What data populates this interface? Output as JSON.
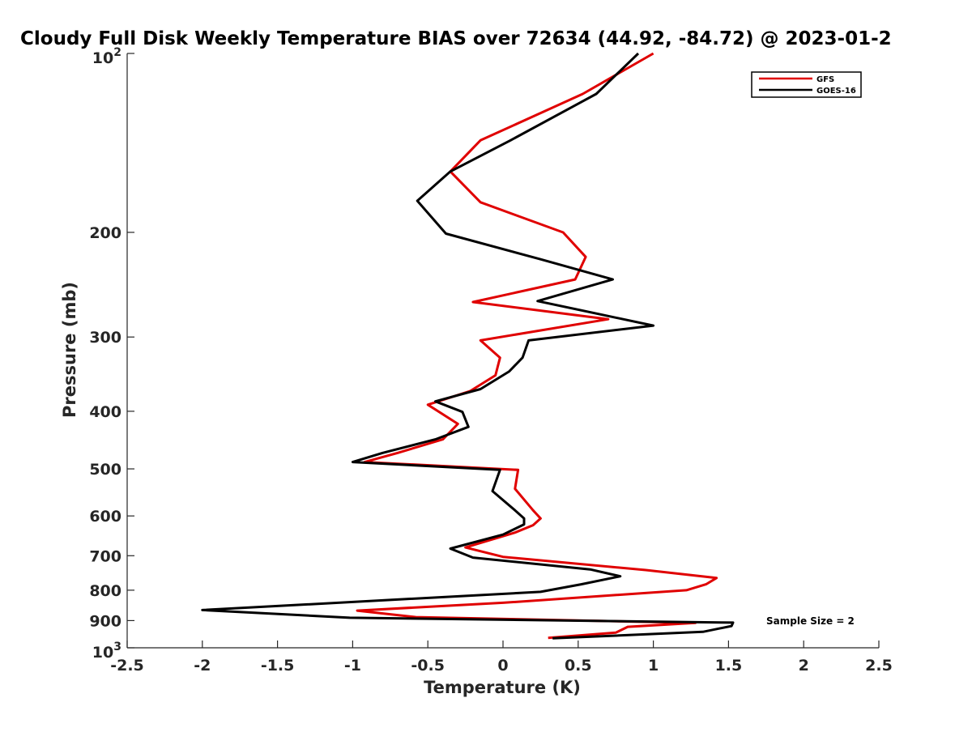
{
  "chart_data": {
    "type": "line",
    "title": "Cloudy Full Disk Weekly Temperature BIAS over 72634 (44.92, -84.72) @ 2023-01-2",
    "xlabel": "Temperature (K)",
    "ylabel": "Pressure (mb)",
    "xlim": [
      -2.5,
      2.5
    ],
    "ylim": [
      100,
      1000
    ],
    "y_scale": "log",
    "y_reversed": true,
    "grid": false,
    "legend_position": "top-right",
    "x_ticks": [
      "-2.5",
      "-2",
      "-1.5",
      "-1",
      "-0.5",
      "0",
      "0.5",
      "1",
      "1.5",
      "2",
      "2.5"
    ],
    "x_tick_values": [
      -2.5,
      -2,
      -1.5,
      -1,
      -0.5,
      0,
      0.5,
      1,
      1.5,
      2,
      2.5
    ],
    "y_ticks": [
      {
        "value": 100,
        "base": "10",
        "exp": "2"
      },
      {
        "value": 200,
        "label": "200"
      },
      {
        "value": 300,
        "label": "300"
      },
      {
        "value": 400,
        "label": "400"
      },
      {
        "value": 500,
        "label": "500"
      },
      {
        "value": 600,
        "label": "600"
      },
      {
        "value": 700,
        "label": "700"
      },
      {
        "value": 800,
        "label": "800"
      },
      {
        "value": 900,
        "label": "900"
      },
      {
        "value": 1000,
        "base": "10",
        "exp": "3"
      }
    ],
    "annotation": "Sample Size = 2",
    "series": [
      {
        "name": "GFS",
        "color": "#e00000",
        "points": [
          {
            "x": 1.0,
            "p": 100
          },
          {
            "x": 0.53,
            "p": 117
          },
          {
            "x": -0.15,
            "p": 140
          },
          {
            "x": -0.35,
            "p": 158
          },
          {
            "x": -0.15,
            "p": 178
          },
          {
            "x": 0.4,
            "p": 200
          },
          {
            "x": 0.55,
            "p": 220
          },
          {
            "x": 0.48,
            "p": 240
          },
          {
            "x": -0.2,
            "p": 262
          },
          {
            "x": 0.7,
            "p": 280
          },
          {
            "x": -0.15,
            "p": 304
          },
          {
            "x": -0.02,
            "p": 325
          },
          {
            "x": -0.05,
            "p": 348
          },
          {
            "x": -0.22,
            "p": 370
          },
          {
            "x": -0.5,
            "p": 390
          },
          {
            "x": -0.3,
            "p": 420
          },
          {
            "x": -0.4,
            "p": 446
          },
          {
            "x": -0.7,
            "p": 470
          },
          {
            "x": -0.92,
            "p": 487
          },
          {
            "x": 0.1,
            "p": 502
          },
          {
            "x": 0.08,
            "p": 540
          },
          {
            "x": 0.2,
            "p": 587
          },
          {
            "x": 0.25,
            "p": 606
          },
          {
            "x": 0.2,
            "p": 622
          },
          {
            "x": 0.08,
            "p": 640
          },
          {
            "x": -0.25,
            "p": 678
          },
          {
            "x": 0.0,
            "p": 703
          },
          {
            "x": 0.95,
            "p": 740
          },
          {
            "x": 1.42,
            "p": 763
          },
          {
            "x": 1.35,
            "p": 782
          },
          {
            "x": 1.22,
            "p": 800
          },
          {
            "x": 0.0,
            "p": 840
          },
          {
            "x": -0.97,
            "p": 866
          },
          {
            "x": -0.58,
            "p": 888
          },
          {
            "x": 1.28,
            "p": 908
          },
          {
            "x": 0.83,
            "p": 922
          },
          {
            "x": 0.75,
            "p": 943
          },
          {
            "x": 0.3,
            "p": 962
          }
        ]
      },
      {
        "name": "GOES-16",
        "color": "#000000",
        "points": [
          {
            "x": 0.9,
            "p": 100
          },
          {
            "x": 0.62,
            "p": 117
          },
          {
            "x": 0.05,
            "p": 140
          },
          {
            "x": -0.35,
            "p": 158
          },
          {
            "x": -0.57,
            "p": 177
          },
          {
            "x": -0.38,
            "p": 201
          },
          {
            "x": 0.25,
            "p": 222
          },
          {
            "x": 0.73,
            "p": 240
          },
          {
            "x": 0.23,
            "p": 261
          },
          {
            "x": 1.0,
            "p": 287
          },
          {
            "x": 0.17,
            "p": 304
          },
          {
            "x": 0.13,
            "p": 325
          },
          {
            "x": 0.04,
            "p": 343
          },
          {
            "x": -0.15,
            "p": 367
          },
          {
            "x": -0.45,
            "p": 385
          },
          {
            "x": -0.27,
            "p": 401
          },
          {
            "x": -0.23,
            "p": 425
          },
          {
            "x": -0.45,
            "p": 446
          },
          {
            "x": -0.8,
            "p": 470
          },
          {
            "x": -1.0,
            "p": 487
          },
          {
            "x": -0.02,
            "p": 502
          },
          {
            "x": -0.07,
            "p": 545
          },
          {
            "x": 0.08,
            "p": 587
          },
          {
            "x": 0.14,
            "p": 606
          },
          {
            "x": 0.14,
            "p": 620
          },
          {
            "x": 0.0,
            "p": 645
          },
          {
            "x": -0.35,
            "p": 681
          },
          {
            "x": -0.2,
            "p": 705
          },
          {
            "x": 0.58,
            "p": 738
          },
          {
            "x": 0.78,
            "p": 758
          },
          {
            "x": 0.52,
            "p": 782
          },
          {
            "x": 0.25,
            "p": 805
          },
          {
            "x": -2.0,
            "p": 864
          },
          {
            "x": -1.02,
            "p": 890
          },
          {
            "x": 1.53,
            "p": 907
          },
          {
            "x": 1.52,
            "p": 919
          },
          {
            "x": 1.33,
            "p": 940
          },
          {
            "x": 0.33,
            "p": 964
          }
        ]
      }
    ]
  }
}
